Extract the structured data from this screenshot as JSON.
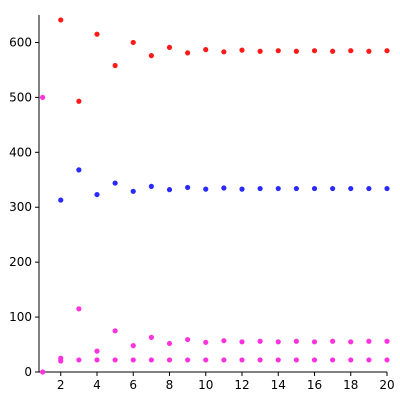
{
  "chart_data": {
    "type": "scatter",
    "title": "",
    "xlabel": "",
    "ylabel": "",
    "xlim": [
      0.8,
      20
    ],
    "ylim": [
      0,
      650
    ],
    "x_ticks": [
      "2",
      "4",
      "6",
      "8",
      "10",
      "12",
      "14",
      "16",
      "18",
      "20"
    ],
    "y_ticks": [
      "0",
      "100",
      "200",
      "300",
      "400",
      "500",
      "600"
    ],
    "grid": false,
    "legend": "none",
    "series": [
      {
        "color": "#ff1a1a",
        "x": [
          2,
          3,
          4,
          5,
          6,
          7,
          8,
          9,
          10,
          11,
          12,
          13,
          14,
          15,
          16,
          17,
          18,
          19,
          20
        ],
        "values": [
          641,
          493,
          615,
          558,
          600,
          576,
          591,
          581,
          587,
          583,
          586,
          584,
          585,
          584,
          585,
          584,
          585,
          584,
          585
        ]
      },
      {
        "color": "#2a2aff",
        "x": [
          2,
          3,
          4,
          5,
          6,
          7,
          8,
          9,
          10,
          11,
          12,
          13,
          14,
          15,
          16,
          17,
          18,
          19,
          20
        ],
        "values": [
          313,
          368,
          323,
          344,
          329,
          338,
          332,
          336,
          333,
          335,
          333,
          334,
          334,
          334,
          334,
          334,
          334,
          334,
          334
        ]
      },
      {
        "color": "#ff33dd",
        "x": [
          1,
          2,
          3,
          4,
          5,
          6,
          7,
          8,
          9,
          10,
          11,
          12,
          13,
          14,
          15,
          16,
          17,
          18,
          19,
          20
        ],
        "values": [
          500,
          25,
          115,
          38,
          75,
          48,
          63,
          52,
          59,
          54,
          57,
          55,
          56,
          55,
          56,
          55,
          56,
          55,
          56,
          56
        ]
      },
      {
        "color": "#ff33dd",
        "x": [
          1,
          2,
          3,
          4,
          5,
          6,
          7,
          8,
          9,
          10,
          11,
          12,
          13,
          14,
          15,
          16,
          17,
          18,
          19,
          20
        ],
        "values": [
          0,
          20,
          22,
          22,
          22,
          22,
          22,
          22,
          22,
          22,
          22,
          22,
          22,
          22,
          22,
          22,
          22,
          22,
          22,
          22
        ]
      }
    ]
  }
}
